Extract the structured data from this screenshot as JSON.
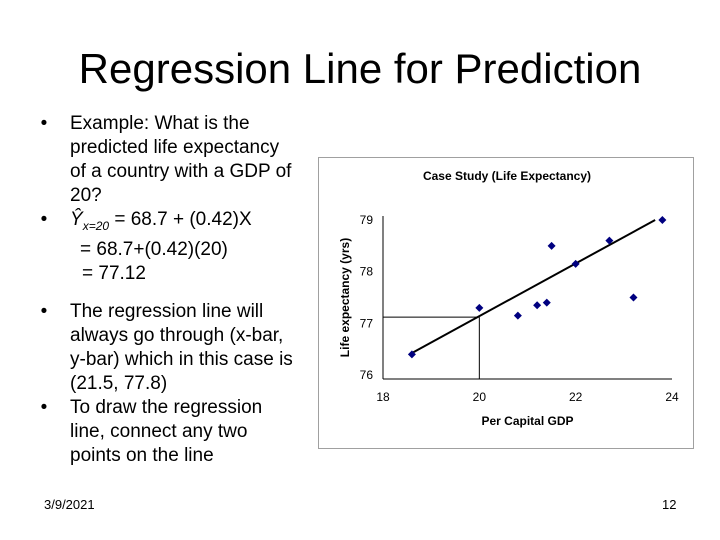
{
  "slide": {
    "title": "Regression Line for Prediction",
    "date": "3/9/2021",
    "page": "12"
  },
  "bullets": {
    "b1": "Example: What is the predicted life expectancy of a country with a GDP of 20?",
    "b1_lines": [
      "Example: What is the",
      "predicted life expectancy",
      "of a country with a GDP of",
      "20?"
    ],
    "b2_yhat": "Ŷ",
    "b2_sub": "x=20",
    "b2_eq": " = 68.7 + (0.42)X",
    "b2_line2": "= 68.7+(0.42)(20)",
    "b2_line3": "= 77.12",
    "b3_lines": [
      "The regression line will",
      "always go through (x-bar,",
      "y-bar) which in this case is",
      "(21.5, 77.8)"
    ],
    "b4_lines": [
      "To draw the regression",
      "line, connect any two",
      "points on the line"
    ]
  },
  "chart_data": {
    "type": "scatter",
    "title": "Case Study (Life Expectancy)",
    "xlabel": "Per Capital GDP",
    "ylabel": "Life expectancy (yrs)",
    "xlim": [
      18,
      24
    ],
    "ylim": [
      76,
      79
    ],
    "xticks": [
      18,
      20,
      22,
      24
    ],
    "yticks": [
      76,
      77,
      78,
      79
    ],
    "points": [
      {
        "x": 18.6,
        "y": 76.4
      },
      {
        "x": 20.0,
        "y": 77.3
      },
      {
        "x": 20.8,
        "y": 77.15
      },
      {
        "x": 21.2,
        "y": 77.35
      },
      {
        "x": 21.4,
        "y": 77.4
      },
      {
        "x": 21.5,
        "y": 78.5
      },
      {
        "x": 22.0,
        "y": 78.15
      },
      {
        "x": 22.7,
        "y": 78.6
      },
      {
        "x": 23.2,
        "y": 77.5
      },
      {
        "x": 23.8,
        "y": 79.0
      }
    ],
    "regression_line": {
      "x": [
        18.55,
        23.65
      ],
      "y": [
        76.4,
        79.0
      ]
    },
    "prediction_guide": {
      "x": 20,
      "y": 77.12
    },
    "marker_color": "#000080"
  }
}
